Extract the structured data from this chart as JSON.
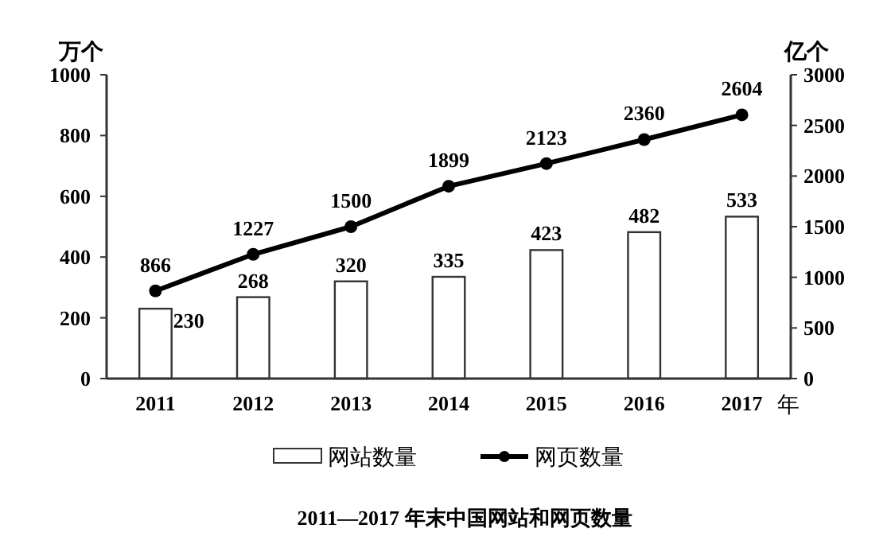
{
  "chart_data": {
    "type": "bar",
    "title": "2011—2017 年末中国网站和网页数量",
    "xlabel": "年",
    "ylabel": "万个",
    "y2label": "亿个",
    "categories": [
      "2011",
      "2012",
      "2013",
      "2014",
      "2015",
      "2016",
      "2017"
    ],
    "series": [
      {
        "name": "网站数量",
        "color": "#ffffff",
        "values": [
          230,
          268,
          320,
          335,
          423,
          482,
          533
        ]
      },
      {
        "name": "网页数量",
        "type": "line",
        "axis": "y2",
        "color": "#000000",
        "values": [
          866,
          1227,
          1500,
          1899,
          2123,
          2360,
          2604
        ]
      }
    ],
    "ylim": [
      0,
      1000
    ],
    "yticks": [
      0,
      200,
      400,
      600,
      800,
      1000
    ],
    "y2lim": [
      0,
      3000
    ],
    "y2ticks": [
      0,
      500,
      1000,
      1500,
      2000,
      2500,
      3000
    ],
    "data_labels": true,
    "legend": "bottom",
    "marker": "circle",
    "line_style": "solid",
    "grid": false
  }
}
